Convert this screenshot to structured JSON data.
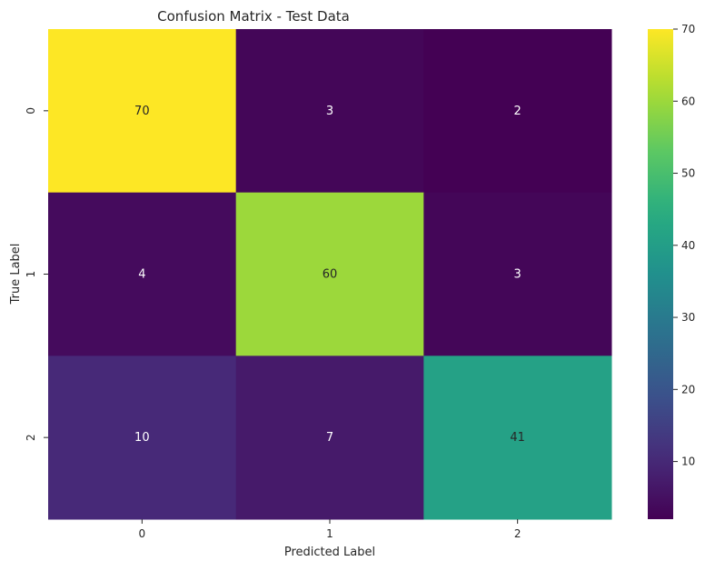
{
  "chart_data": {
    "type": "heatmap",
    "title": "Confusion Matrix - Test Data",
    "xlabel": "Predicted Label",
    "ylabel": "True Label",
    "x_categories": [
      "0",
      "1",
      "2"
    ],
    "y_categories": [
      "0",
      "1",
      "2"
    ],
    "values": [
      [
        70,
        3,
        2
      ],
      [
        4,
        60,
        3
      ],
      [
        10,
        7,
        41
      ]
    ],
    "colormap": "viridis",
    "color_range": [
      2,
      70
    ],
    "colorbar_ticks": [
      10,
      20,
      30,
      40,
      50,
      60,
      70
    ]
  }
}
